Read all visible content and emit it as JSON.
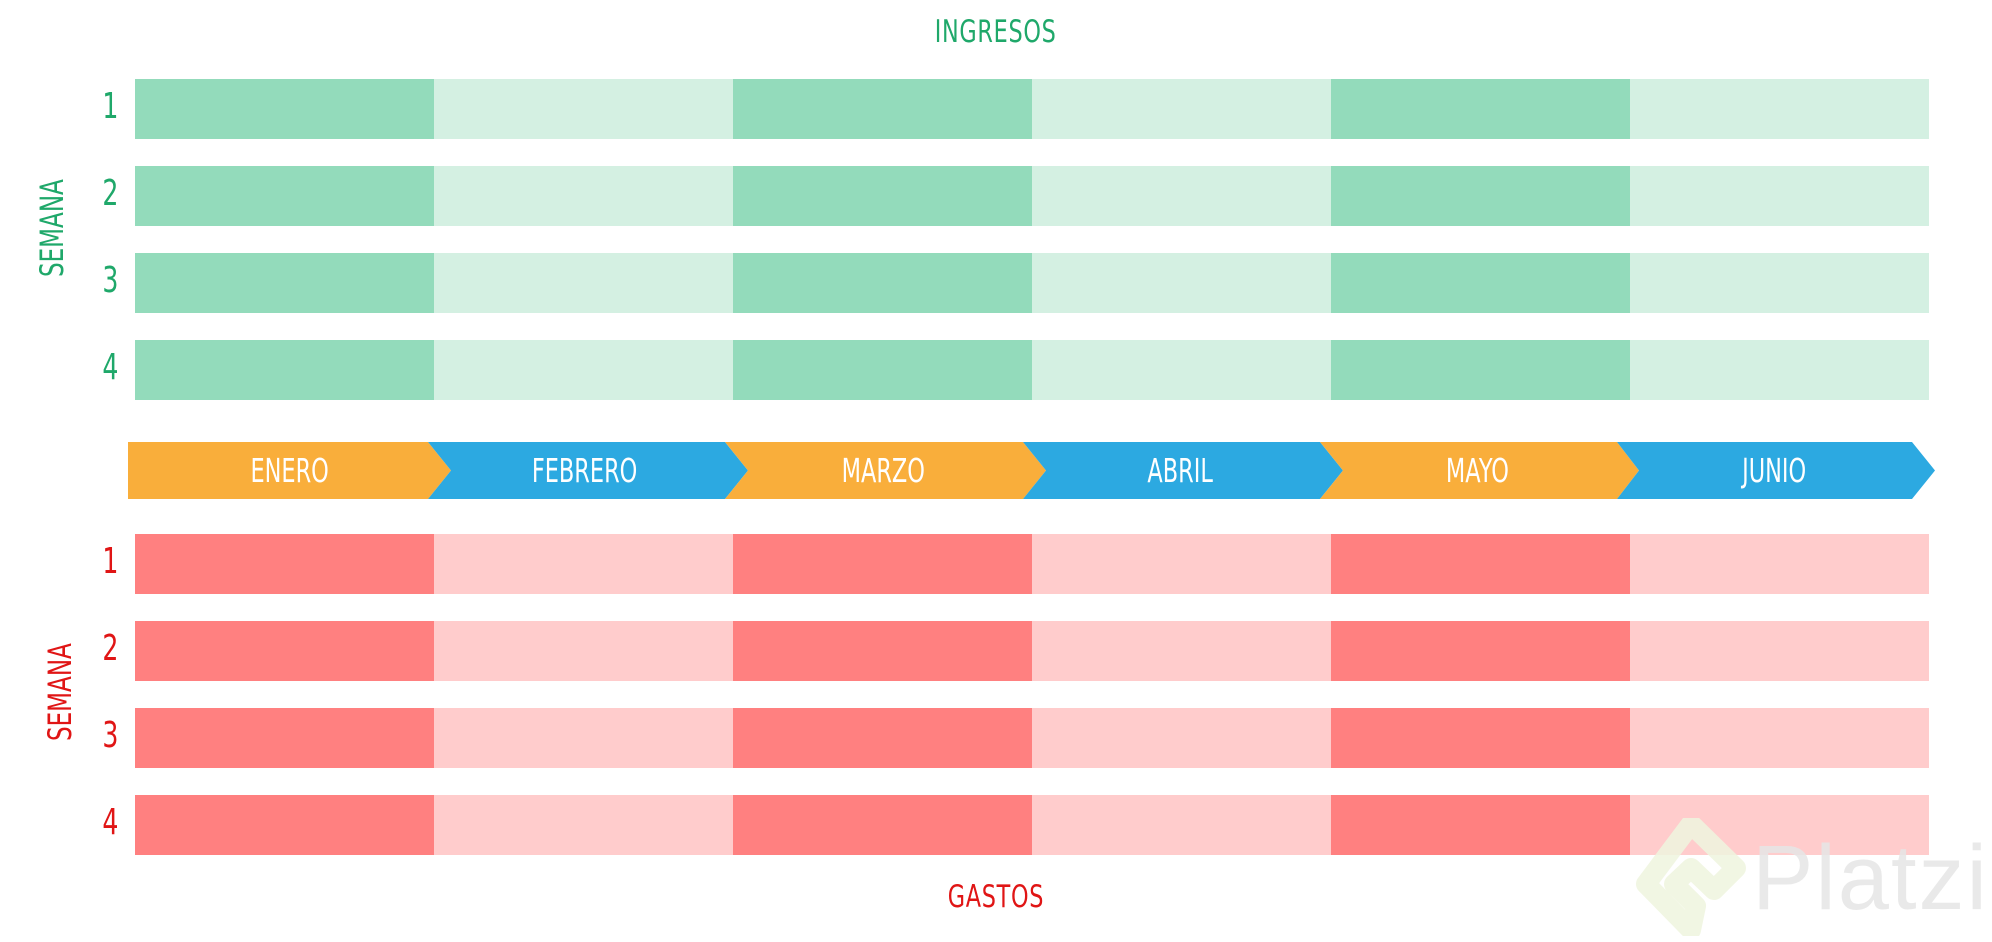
{
  "ingresos": {
    "title": "INGRESOS",
    "axis_label": "SEMANA",
    "weeks": [
      "1",
      "2",
      "3",
      "4"
    ],
    "color_text": "#1fa86a",
    "color_dark": "#93dbbb",
    "color_light": "#d4f0e2"
  },
  "timeline": {
    "months": [
      {
        "label": "ENERO",
        "color": "#f9ae3b"
      },
      {
        "label": "FEBRERO",
        "color": "#2ca9e1"
      },
      {
        "label": "MARZO",
        "color": "#f9ae3b"
      },
      {
        "label": "ABRIL",
        "color": "#2ca9e1"
      },
      {
        "label": "MAYO",
        "color": "#f9ae3b"
      },
      {
        "label": "JUNIO",
        "color": "#2ca9e1"
      }
    ]
  },
  "gastos": {
    "title": "GASTOS",
    "axis_label": "SEMANA",
    "weeks": [
      "1",
      "2",
      "3",
      "4"
    ],
    "color_text": "#e01515",
    "color_dark": "#ff8080",
    "color_light": "#ffcccc"
  },
  "watermark": {
    "text": "Platzi"
  }
}
